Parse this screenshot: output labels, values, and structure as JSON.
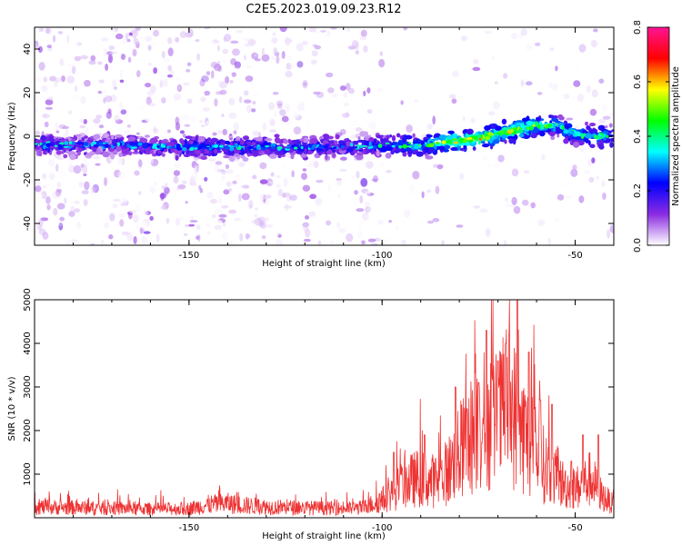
{
  "title": "C2E5.2023.019.09.23.R12",
  "chart_data": [
    {
      "type": "heatmap",
      "xlabel": "Height of straight line (km)",
      "ylabel": "Frequency (Hz)",
      "xlim": [
        -190,
        -40
      ],
      "ylim": [
        -50,
        50
      ],
      "x_ticks": [
        -150,
        -100,
        -50
      ],
      "y_ticks": [
        -40,
        -20,
        0,
        20,
        40
      ],
      "colorbar": {
        "label": "Normalized spectral amplitude",
        "range": [
          0.0,
          0.8
        ],
        "ticks": [
          0.0,
          0.2,
          0.4,
          0.6,
          0.8
        ],
        "colors": [
          "#ffffff",
          "#8a2be2",
          "#0000ff",
          "#00ffff",
          "#00ff00",
          "#ffff00",
          "#ff0000",
          "#ff1493"
        ]
      },
      "ridge": {
        "x": [
          -190,
          -170,
          -150,
          -130,
          -110,
          -100,
          -90,
          -85,
          -80,
          -75,
          -70,
          -65,
          -60,
          -55,
          -50,
          -45,
          -40
        ],
        "y": [
          -4,
          -4,
          -5,
          -5,
          -5,
          -4,
          -4,
          -3,
          -2,
          -1,
          1,
          3,
          5,
          5,
          1,
          0,
          0
        ],
        "amplitude": [
          0.2,
          0.15,
          0.22,
          0.2,
          0.18,
          0.22,
          0.3,
          0.38,
          0.4,
          0.45,
          0.4,
          0.42,
          0.35,
          0.3,
          0.3,
          0.3,
          0.25
        ]
      },
      "grid": false
    },
    {
      "type": "line",
      "xlabel": "Height of straight line (km)",
      "ylabel": "SNR (10 * v/v)",
      "xlim": [
        -190,
        -40
      ],
      "ylim": [
        0,
        5000
      ],
      "x_ticks": [
        -150,
        -100,
        -50
      ],
      "y_ticks": [
        1000,
        2000,
        3000,
        4000,
        5000
      ],
      "color": "#ee3333",
      "x": [
        -190,
        -180,
        -170,
        -160,
        -150,
        -145,
        -140,
        -135,
        -130,
        -125,
        -120,
        -115,
        -110,
        -105,
        -100,
        -97,
        -94,
        -91,
        -88,
        -85,
        -82,
        -79,
        -76,
        -73,
        -70,
        -67,
        -64,
        -61,
        -58,
        -55,
        -52,
        -49,
        -46,
        -43,
        -40
      ],
      "y": [
        250,
        230,
        220,
        200,
        210,
        300,
        330,
        280,
        250,
        240,
        230,
        220,
        210,
        230,
        400,
        600,
        800,
        900,
        850,
        850,
        1200,
        1600,
        2000,
        2300,
        2200,
        2600,
        2000,
        1600,
        1200,
        900,
        700,
        700,
        900,
        500,
        300
      ],
      "peaks": [
        [
          -97,
          1500
        ],
        [
          -89,
          1900
        ],
        [
          -81,
          3000
        ],
        [
          -78,
          2500
        ],
        [
          -75,
          3100
        ],
        [
          -73,
          4300
        ],
        [
          -70,
          3600
        ],
        [
          -68,
          4000
        ],
        [
          -65,
          5000
        ],
        [
          -62,
          3800
        ],
        [
          -59,
          2700
        ],
        [
          -56,
          2600
        ],
        [
          -51,
          1300
        ],
        [
          -48,
          1900
        ],
        [
          -44,
          1900
        ]
      ],
      "grid": false
    }
  ]
}
